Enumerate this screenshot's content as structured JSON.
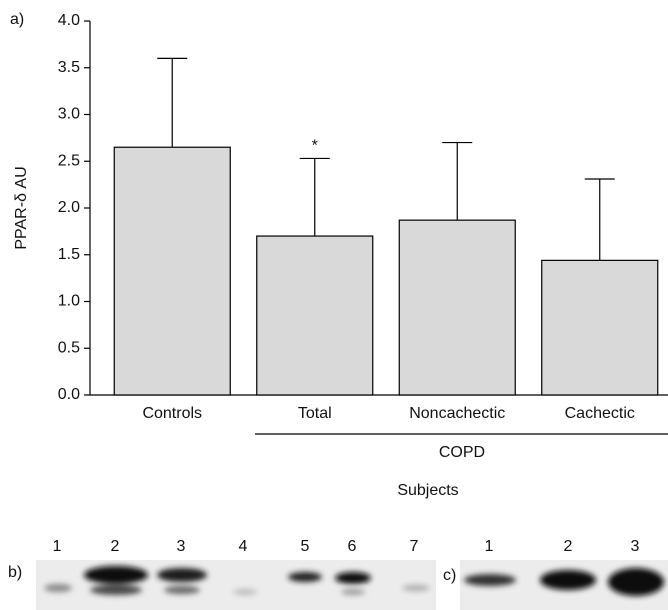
{
  "chart_data": {
    "type": "bar",
    "panel_label": "a)",
    "y_label": "PPAR-δ AU",
    "x_label": "Subjects",
    "categories": [
      "Controls",
      "Total",
      "Noncachectic",
      "Cachectic"
    ],
    "values": [
      2.65,
      1.7,
      1.87,
      1.44
    ],
    "errors": [
      0.95,
      0.83,
      0.83,
      0.87
    ],
    "annotation": "*",
    "group_label": "COPD",
    "color": "#d9d9d9",
    "ylim": [
      0,
      4
    ],
    "yticks": [
      {
        "value": 0,
        "label": "0.0"
      },
      0.5,
      {
        "value": 1,
        "label": "1.0"
      },
      1.5,
      {
        "value": 2,
        "label": "2.0"
      },
      2.5,
      {
        "value": 3,
        "label": "3.0"
      },
      3.5,
      {
        "value": 4,
        "label": "4.0"
      }
    ]
  },
  "blot_b": {
    "label": "b)",
    "lanes": [
      "1",
      "2",
      "3",
      "4",
      "5",
      "6",
      "7"
    ]
  },
  "blot_c": {
    "label": "c)",
    "lanes": [
      "1",
      "2",
      "3"
    ]
  }
}
